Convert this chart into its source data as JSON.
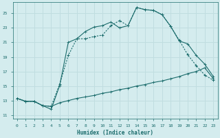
{
  "xlabel": "Humidex (Indice chaleur)",
  "bg_color": "#d4ecee",
  "grid_color": "#c0dde0",
  "line_color": "#1a6b6b",
  "xlim": [
    -0.5,
    23.5
  ],
  "ylim": [
    10.5,
    26.5
  ],
  "xticks": [
    0,
    1,
    2,
    3,
    4,
    5,
    6,
    7,
    8,
    9,
    10,
    11,
    12,
    13,
    14,
    15,
    16,
    17,
    18,
    19,
    20,
    21,
    22,
    23
  ],
  "yticks": [
    11,
    13,
    15,
    17,
    19,
    21,
    23,
    25
  ],
  "line1_x": [
    0,
    1,
    2,
    3,
    4,
    5,
    6,
    7,
    8,
    9,
    10,
    11,
    12,
    13,
    14,
    15,
    16,
    17,
    18,
    19,
    20,
    21,
    22,
    23
  ],
  "line1_y": [
    13.3,
    12.9,
    12.9,
    12.3,
    12.2,
    12.7,
    13.0,
    13.3,
    13.5,
    13.7,
    14.0,
    14.2,
    14.5,
    14.7,
    15.0,
    15.2,
    15.5,
    15.7,
    16.0,
    16.3,
    16.7,
    17.0,
    17.5,
    16.0
  ],
  "line2_x": [
    0,
    1,
    2,
    3,
    4,
    5,
    6,
    7,
    8,
    9,
    10,
    11,
    12,
    13,
    14,
    15,
    16,
    17,
    18,
    19,
    20,
    21,
    22,
    23
  ],
  "line2_y": [
    13.3,
    12.9,
    12.9,
    12.3,
    12.2,
    15.3,
    19.2,
    21.5,
    21.5,
    21.8,
    22.0,
    23.3,
    24.0,
    23.3,
    25.8,
    25.5,
    25.4,
    24.8,
    23.2,
    21.3,
    19.3,
    17.8,
    16.5,
    15.8
  ],
  "line3_x": [
    0,
    1,
    2,
    3,
    4,
    5,
    6,
    7,
    8,
    9,
    10,
    11,
    12,
    13,
    14,
    15,
    16,
    17,
    18,
    19,
    20,
    21,
    22,
    23
  ],
  "line3_y": [
    13.3,
    12.9,
    12.9,
    12.3,
    11.8,
    15.1,
    21.0,
    21.5,
    22.5,
    23.1,
    23.3,
    23.8,
    23.0,
    23.3,
    25.8,
    25.5,
    25.4,
    24.8,
    23.2,
    21.2,
    20.8,
    19.2,
    18.0,
    16.3
  ]
}
